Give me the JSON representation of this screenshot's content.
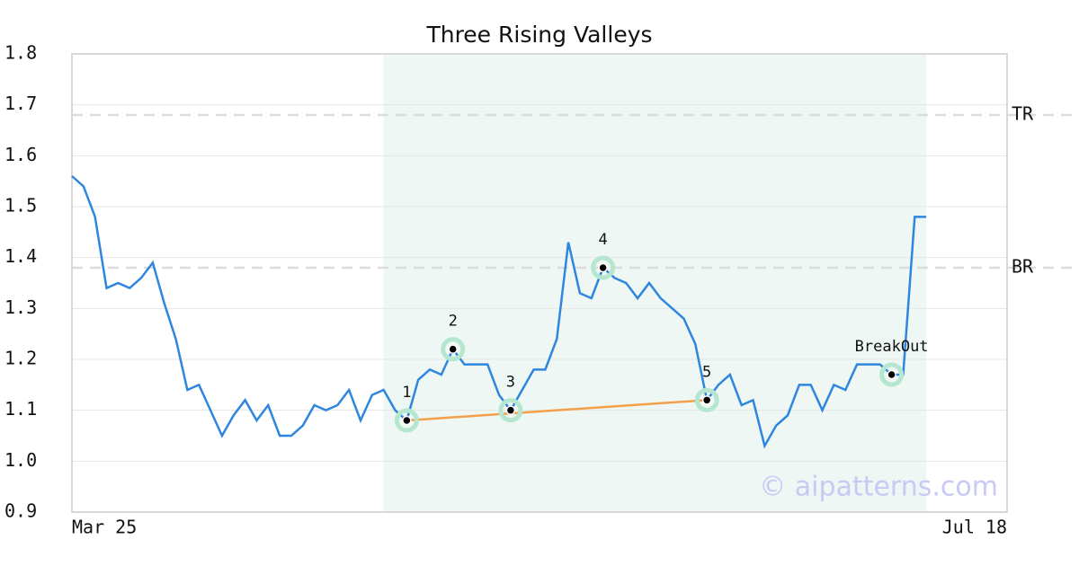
{
  "chart_data": {
    "type": "line",
    "title": "Three Rising Valleys",
    "x": [
      0,
      1,
      2,
      3,
      4,
      5,
      6,
      7,
      8,
      9,
      10,
      11,
      12,
      13,
      14,
      15,
      16,
      17,
      18,
      19,
      20,
      21,
      22,
      23,
      24,
      25,
      26,
      27,
      28,
      29,
      30,
      31,
      32,
      33,
      34,
      35,
      36,
      37,
      38,
      39,
      40,
      41,
      42,
      43,
      44,
      45,
      46,
      47,
      48,
      49,
      50,
      51,
      52,
      53,
      54,
      55,
      56,
      57,
      58,
      59,
      60,
      61,
      62,
      63,
      64,
      65,
      66,
      67,
      68,
      69,
      70,
      71,
      72,
      73,
      74
    ],
    "values": [
      1.56,
      1.54,
      1.48,
      1.34,
      1.35,
      1.34,
      1.36,
      1.39,
      1.31,
      1.24,
      1.14,
      1.15,
      1.1,
      1.05,
      1.09,
      1.12,
      1.08,
      1.11,
      1.05,
      1.05,
      1.07,
      1.11,
      1.1,
      1.11,
      1.14,
      1.08,
      1.13,
      1.14,
      1.1,
      1.08,
      1.16,
      1.18,
      1.17,
      1.22,
      1.19,
      1.19,
      1.19,
      1.13,
      1.1,
      1.14,
      1.18,
      1.18,
      1.24,
      1.43,
      1.33,
      1.32,
      1.38,
      1.36,
      1.35,
      1.32,
      1.35,
      1.32,
      1.3,
      1.28,
      1.23,
      1.12,
      1.15,
      1.17,
      1.11,
      1.12,
      1.03,
      1.07,
      1.09,
      1.15,
      1.15,
      1.1,
      1.15,
      1.14,
      1.19,
      1.19,
      1.19,
      1.17,
      1.17,
      1.48,
      1.48
    ],
    "color": "#2e86de",
    "xlim": [
      0,
      81
    ],
    "xticks": [
      {
        "value": 0,
        "label": "Mar 25"
      },
      {
        "value": 81,
        "label": "Jul 18"
      }
    ],
    "ylim": [
      0.9,
      1.8
    ],
    "yticks": [
      0.9,
      {
        "value": 1,
        "label": "1.0"
      },
      1.1,
      1.2,
      1.3,
      1.4,
      1.5,
      1.6,
      1.7,
      1.8
    ],
    "grid": true,
    "highlight_x": [
      27,
      74
    ],
    "levels": [
      {
        "label": "TR",
        "value": 1.68
      },
      {
        "label": "BR",
        "value": 1.38
      }
    ],
    "points": [
      {
        "label": "1",
        "x": 29,
        "value": 1.08
      },
      {
        "label": "2",
        "x": 33,
        "value": 1.22
      },
      {
        "label": "3",
        "x": 38,
        "value": 1.1
      },
      {
        "label": "4",
        "x": 46,
        "value": 1.38
      },
      {
        "label": "5",
        "x": 55,
        "value": 1.12
      },
      {
        "label": "BreakOut",
        "x": 71,
        "value": 1.17
      }
    ],
    "trendline": {
      "x": [
        29,
        55
      ],
      "values": [
        1.08,
        1.12
      ],
      "color": "#f4a04a"
    },
    "watermark": "© aipatterns.com"
  }
}
